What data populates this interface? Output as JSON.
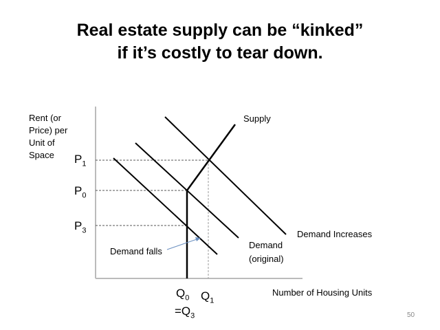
{
  "title_line1": "Real estate supply can be “kinked”",
  "title_line2": "if it’s costly to tear down.",
  "y_axis_label": [
    "Rent (or",
    "Price) per",
    "Unit of",
    "Space"
  ],
  "x_axis_label": "Number of Housing Units",
  "price_labels": [
    {
      "main": "P",
      "sub": "1"
    },
    {
      "main": "P",
      "sub": "0"
    },
    {
      "main": "P",
      "sub": "3"
    }
  ],
  "quantity_labels": {
    "q0": {
      "main": "Q",
      "sub": "0"
    },
    "q3": {
      "main": "=Q",
      "sub": "3"
    },
    "q1": {
      "main": "Q",
      "sub": "1"
    }
  },
  "curve_labels": {
    "supply": "Supply",
    "demand_increases": "Demand Increases",
    "demand_original_1": "Demand",
    "demand_original_2": "(original)",
    "demand_falls": "Demand falls"
  },
  "page_number": "50",
  "colors": {
    "arrow": "#6a8fc0",
    "q1_dashed": "#999999"
  }
}
